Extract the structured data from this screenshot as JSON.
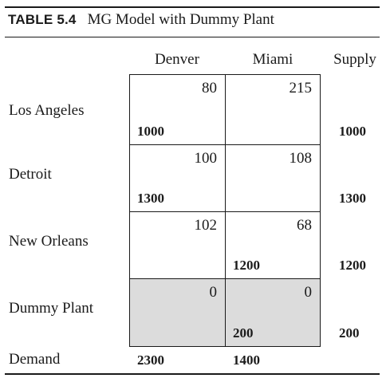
{
  "table": {
    "label": "TABLE 5.4",
    "title": "MG Model with Dummy Plant"
  },
  "columns": [
    "Denver",
    "Miami",
    "Supply"
  ],
  "rows": [
    {
      "name": "Los Angeles",
      "costs": [
        "80",
        "215"
      ],
      "allocations": [
        "1000",
        ""
      ],
      "supply": "1000",
      "dummy": false
    },
    {
      "name": "Detroit",
      "costs": [
        "100",
        "108"
      ],
      "allocations": [
        "1300",
        ""
      ],
      "supply": "1300",
      "dummy": false
    },
    {
      "name": "New Orleans",
      "costs": [
        "102",
        "68"
      ],
      "allocations": [
        "",
        "1200"
      ],
      "supply": "1200",
      "dummy": false
    },
    {
      "name": "Dummy Plant",
      "costs": [
        "0",
        "0"
      ],
      "allocations": [
        "",
        "200"
      ],
      "supply": "200",
      "dummy": true
    }
  ],
  "demand": {
    "label": "Demand",
    "values": [
      "2300",
      "1400"
    ]
  },
  "colors": {
    "dummy_fill": "#dcdcdc",
    "rule": "#1a1a1a"
  }
}
